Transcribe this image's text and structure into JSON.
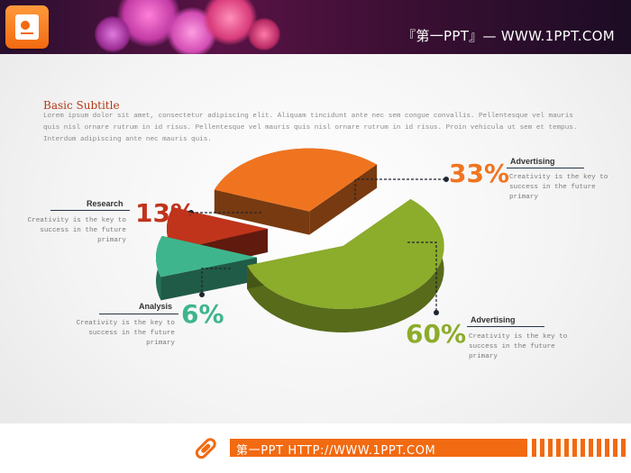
{
  "header": {
    "brand": "『第一PPT』— WWW.1PPT.COM",
    "logo_icon": "presentation-doc-icon"
  },
  "subtitle": {
    "title": "Basic Subtitle",
    "body": "Lorem ipsum dolor sit amet, consectetur adipiscing elit. Aliquam tincidunt ante nec sem congue convallis. Pellentesque vel mauris quis nisl ornare rutrum in id risus. Pellentesque vel mauris quis nisl ornare rutrum in id risus. Proin vehicula ut sem et tempus. Interdum adipiscing ante nec mauris quis."
  },
  "chart_data": {
    "type": "pie",
    "style": "3d-exploded",
    "slices": [
      {
        "label": "Advertising",
        "value": 33,
        "display": "33%",
        "color": "#f0741f",
        "description": "Creativity is the key to success in the future primary"
      },
      {
        "label": "Advertising",
        "value": 60,
        "display": "60%",
        "color": "#8cac2b",
        "description": "Creativity is the key to success in the future primary"
      },
      {
        "label": "Analysis",
        "value": 6,
        "display": "6%",
        "color": "#3fb58d",
        "description": "Creativity is the key to success in the future primary"
      },
      {
        "label": "Research",
        "value": 13,
        "display": "13%",
        "color": "#c0341b",
        "description": "Creativity is the key to success in the future primary"
      }
    ]
  },
  "footer": {
    "text": "第一PPT HTTP://WWW.1PPT.COM",
    "icon": "pencil-icon",
    "accent": "#f26a11"
  }
}
